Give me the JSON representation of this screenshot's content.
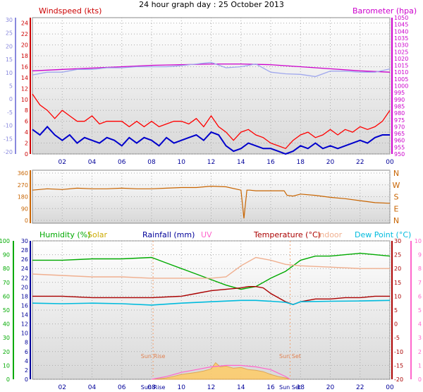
{
  "title": "24 hour graph day : 25 October 2013",
  "colors": {
    "windspeed": "#cc0000",
    "wind_bar": "#ff0000",
    "wind_avg": "#0000cc",
    "gust": "#a0a8ee",
    "barometer": "#cc00cc",
    "direction": "#c86400",
    "humidity": "#00aa00",
    "solar": "#ccaa00",
    "rainfall": "#000099",
    "uv": "#ff66cc",
    "temperature": "#aa0000",
    "indoor": "#f0b090",
    "dewpoint": "#00bbdd",
    "solar_fill": "#ffcc66",
    "leftaxis_wind": "#8888dd",
    "grid": "#aaaaaa",
    "xaxis": "#000099"
  },
  "chart_data": [
    {
      "type": "line",
      "panel": "wind",
      "labels": {
        "left": "Windspeed (kts)",
        "right": "Barometer (hpa)"
      },
      "x_ticks": [
        "02",
        "04",
        "06",
        "08",
        "10",
        "12",
        "14",
        "16",
        "18",
        "20",
        "22",
        "00"
      ],
      "outer_left_ticks": [
        "30",
        "25",
        "20",
        "15",
        "10",
        "5",
        "0",
        "-5",
        "-10",
        "-15",
        "-20"
      ],
      "windspeed_ticks": [
        "24",
        "22",
        "20",
        "18",
        "16",
        "14",
        "12",
        "10",
        "8",
        "6",
        "4",
        "2",
        "0"
      ],
      "barometer_ticks": [
        "1050",
        "1045",
        "1040",
        "1035",
        "1030",
        "1025",
        "1020",
        "1015",
        "1010",
        "1005",
        "1000",
        "995",
        "990",
        "985",
        "980",
        "975",
        "970",
        "965",
        "960",
        "955",
        "950"
      ],
      "ylim_wind": [
        0,
        25
      ],
      "ylim_baro": [
        950,
        1050
      ],
      "series": [
        {
          "key": "barometer",
          "x": [
            0,
            2,
            4,
            6,
            8,
            10,
            12,
            13,
            14,
            16,
            18,
            20,
            22,
            24
          ],
          "values": [
            1011,
            1012,
            1013,
            1014,
            1015,
            1015.5,
            1016,
            1016,
            1016,
            1015.5,
            1014,
            1012.5,
            1011,
            1010
          ]
        },
        {
          "key": "gust",
          "x": [
            0,
            1,
            2,
            3,
            4,
            5,
            6,
            7,
            8,
            9,
            10,
            11,
            12,
            13,
            14,
            15,
            16,
            17,
            18,
            19,
            20,
            21,
            22,
            23,
            24
          ],
          "values": [
            14.5,
            15,
            15,
            15.5,
            15.5,
            15.8,
            15.8,
            16,
            16,
            16,
            16.2,
            16.5,
            16.8,
            15.8,
            16,
            16.5,
            15,
            14.7,
            14.6,
            14.2,
            15.2,
            15.2,
            15,
            15,
            15.6
          ]
        },
        {
          "key": "wind_avg",
          "x": [
            0,
            0.5,
            1,
            1.5,
            2,
            2.5,
            3,
            3.5,
            4,
            4.5,
            5,
            5.5,
            6,
            6.5,
            7,
            7.5,
            8,
            8.5,
            9,
            9.5,
            10,
            10.5,
            11,
            11.5,
            12,
            12.5,
            13,
            13.5,
            14,
            14.5,
            15,
            15.5,
            16,
            16.5,
            17,
            17.5,
            18,
            18.5,
            19,
            19.5,
            20,
            20.5,
            21,
            21.5,
            22,
            22.5,
            23,
            23.5,
            24
          ],
          "values": [
            4.5,
            3.5,
            5,
            3.5,
            2.5,
            3.5,
            2,
            3,
            2.5,
            2,
            3,
            2.5,
            1.5,
            3,
            2,
            3,
            2.5,
            1.5,
            3,
            2,
            2.5,
            3,
            3.5,
            2.5,
            4,
            3.5,
            1.5,
            0.5,
            1,
            2,
            1.5,
            1,
            1,
            0.5,
            0,
            0.5,
            1.5,
            1,
            2,
            1,
            1.5,
            1,
            1.5,
            2,
            2.5,
            2,
            3,
            3.5,
            3.5
          ]
        },
        {
          "key": "windspeed",
          "x": [
            0,
            0.5,
            1,
            1.5,
            2,
            2.5,
            3,
            3.5,
            4,
            4.5,
            5,
            5.5,
            6,
            6.5,
            7,
            7.5,
            8,
            8.5,
            9,
            9.5,
            10,
            10.5,
            11,
            11.5,
            12,
            12.5,
            13,
            13.5,
            14,
            14.5,
            15,
            15.5,
            16,
            16.5,
            17,
            17.5,
            18,
            18.5,
            19,
            19.5,
            20,
            20.5,
            21,
            21.5,
            22,
            22.5,
            23,
            23.5,
            24
          ],
          "values": [
            11,
            9,
            8,
            6.5,
            8,
            7,
            6,
            6,
            7,
            5.5,
            6,
            6,
            6,
            5,
            6,
            5,
            6,
            5,
            5.5,
            6,
            6,
            5.5,
            6.5,
            5,
            7,
            5,
            4,
            2.5,
            4,
            4.5,
            3.5,
            3,
            2,
            1.5,
            1,
            2.5,
            3.5,
            4,
            3,
            3.5,
            4.5,
            3.5,
            4.5,
            4,
            5,
            4.5,
            5,
            6,
            8
          ]
        }
      ]
    },
    {
      "type": "line",
      "panel": "direction",
      "direction_ticks": [
        "360",
        "270",
        "180",
        "90",
        "0"
      ],
      "compass": [
        "N",
        "W",
        "S",
        "E",
        "N"
      ],
      "ylim": [
        0,
        360
      ],
      "x": [
        0,
        1,
        2,
        3,
        4,
        5,
        6,
        7,
        8,
        9,
        10,
        11,
        12,
        13,
        14,
        14.2,
        14.4,
        14.6,
        15,
        16,
        16.9,
        17.1,
        17.5,
        18,
        19,
        20,
        21,
        22,
        23,
        24
      ],
      "values": [
        230,
        240,
        235,
        245,
        240,
        240,
        245,
        240,
        240,
        245,
        250,
        250,
        260,
        255,
        230,
        15,
        230,
        230,
        225,
        225,
        225,
        190,
        185,
        200,
        190,
        175,
        165,
        150,
        135,
        130
      ]
    },
    {
      "type": "line",
      "panel": "weather",
      "labels": [
        "Humidity (%)",
        "Solar",
        "Rainfall (mm)",
        "UV",
        "Temperature (°C)",
        "Indoor",
        "Dew Point (°C)"
      ],
      "x_ticks": [
        "02",
        "04",
        "06",
        "08",
        "10",
        "12",
        "14",
        "16",
        "18",
        "20",
        "22",
        "00"
      ],
      "humidity_ticks": [
        "100",
        "90",
        "80",
        "70",
        "60",
        "50",
        "40",
        "30",
        "20",
        "10",
        "0"
      ],
      "rain_ticks": [
        "30",
        "28",
        "26",
        "24",
        "22",
        "20",
        "18",
        "16",
        "14",
        "12",
        "10",
        "8",
        "6",
        "4",
        "2",
        "0"
      ],
      "temp_ticks": [
        "30",
        "25",
        "20",
        "15",
        "10",
        "5",
        "0",
        "-5",
        "-10",
        "-15",
        "-20"
      ],
      "uv_ticks": [
        "10",
        "9",
        "8",
        "7",
        "6",
        "5",
        "4",
        "3",
        "2",
        "1",
        "0"
      ],
      "annotations": {
        "sunrise": "Sun Rise",
        "sunset": "Sun Set",
        "sunrise_time": "Sun Rise",
        "sunset_time": "Sun Set"
      },
      "ylim_humidity": [
        0,
        100
      ],
      "ylim_temp": [
        -20,
        30
      ],
      "sunrise_hour": 8.1,
      "sunset_hour": 17.3,
      "series": [
        {
          "key": "humidity",
          "x": [
            0,
            2,
            4,
            6,
            8,
            9,
            10,
            11,
            12,
            13,
            14,
            14.5,
            15,
            16,
            17,
            17.5,
            18,
            19,
            20,
            21,
            22,
            23,
            24
          ],
          "values": [
            86,
            86,
            87,
            87,
            88,
            84,
            80,
            76,
            72,
            68,
            65,
            66,
            67,
            73,
            78,
            82,
            86,
            89,
            89,
            90,
            91,
            90,
            89
          ]
        },
        {
          "key": "indoor",
          "x": [
            0,
            2,
            4,
            6,
            8,
            10,
            12,
            13,
            14,
            15,
            16,
            17,
            18,
            20,
            22,
            24
          ],
          "values": [
            18,
            17.5,
            17,
            17,
            16.5,
            16.5,
            16.5,
            17,
            21,
            24,
            23,
            21.5,
            21,
            20.5,
            20,
            20
          ]
        },
        {
          "key": "temperature",
          "x": [
            0,
            2,
            4,
            6,
            8,
            10,
            11,
            12,
            13,
            14,
            14.5,
            15,
            15.5,
            16,
            17,
            17.5,
            18,
            19,
            20,
            21,
            22,
            23,
            24
          ],
          "values": [
            10,
            10,
            9.5,
            9.5,
            9.5,
            10,
            11,
            12,
            12.5,
            13,
            13.5,
            13.5,
            13,
            11,
            8,
            7,
            8,
            9,
            9,
            9.5,
            9.5,
            10,
            10
          ]
        },
        {
          "key": "dewpoint",
          "x": [
            0,
            2,
            4,
            6,
            8,
            10,
            12,
            14,
            15,
            16,
            17,
            17.5,
            18,
            20,
            22,
            24
          ],
          "values": [
            7.5,
            7.3,
            7.5,
            7.3,
            6.8,
            7.5,
            8,
            8.5,
            8.5,
            8.2,
            7.8,
            7,
            8,
            8.2,
            8.3,
            8.5
          ]
        },
        {
          "key": "solar",
          "x": [
            8,
            8.5,
            9,
            9.5,
            10,
            11,
            11.5,
            12,
            12.3,
            12.6,
            13,
            13.5,
            14,
            14.5,
            15,
            15.5,
            16,
            16.5,
            17,
            17.3
          ],
          "values": [
            0,
            0.3,
            1,
            2.2,
            3.5,
            5,
            6,
            7.5,
            12,
            9,
            9.5,
            8,
            8.5,
            7,
            6.5,
            5.5,
            3.5,
            2,
            1,
            0
          ]
        },
        {
          "key": "uv",
          "x": [
            8,
            9,
            10,
            11,
            12,
            13,
            14,
            15,
            16,
            17,
            17.3
          ],
          "values": [
            0,
            0.2,
            0.5,
            0.7,
            0.9,
            1.0,
            1.0,
            0.9,
            0.7,
            0.2,
            0
          ]
        }
      ]
    }
  ]
}
